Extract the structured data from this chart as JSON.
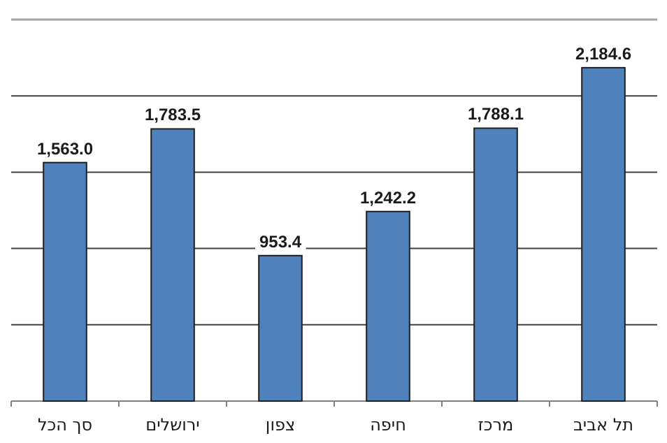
{
  "chart_data": {
    "type": "bar",
    "categories": [
      "סך הכל",
      "ירושלים",
      "צפון",
      "חיפה",
      "מרכז",
      "תל אביב"
    ],
    "values": [
      1563.0,
      1783.5,
      953.4,
      1242.2,
      1788.1,
      2184.6
    ],
    "value_labels": [
      "1,563.0",
      "1,783.5",
      "953.4",
      "1,242.2",
      "1,788.1",
      "2,184.6"
    ],
    "color": "#4f81bd",
    "ylim": [
      0,
      2500
    ],
    "yticks": [
      {
        "value": 0,
        "label": null
      },
      {
        "value": 500,
        "label": null
      },
      {
        "value": 1000,
        "label": null
      },
      {
        "value": 1500,
        "label": null
      },
      {
        "value": 2000,
        "label": null
      },
      {
        "value": 2500,
        "label": null
      }
    ],
    "tick_labels": "x",
    "grid": "y"
  }
}
